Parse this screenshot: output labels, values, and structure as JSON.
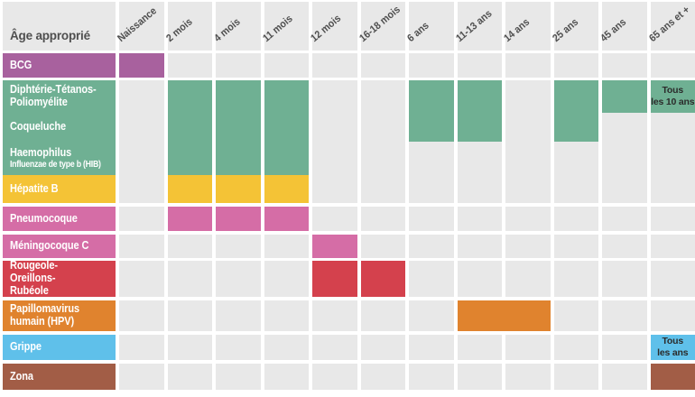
{
  "header": {
    "corner_label": "Âge approprié",
    "columns": [
      "Naissance",
      "2 mois",
      "4 mois",
      "11 mois",
      "12 mois",
      "16-18 mois",
      "6 ans",
      "11-13 ans",
      "14 ans",
      "25 ans",
      "45 ans",
      "65 ans et +"
    ]
  },
  "labels": {
    "bcg": "BCG",
    "dtp": "Diphtérie-Tétanos-\nPoliomyélite",
    "coqueluche": "Coqueluche",
    "hib_line1": "Haemophilus",
    "hib_line2": "Influenzae de type b (HIB)",
    "hepatite_b": "Hépatite B",
    "pneumocoque": "Pneumocoque",
    "meningocoque": "Méningocoque C",
    "rougeole": "Rougeole-Oreillons-\nRubéole",
    "hpv": "Papillomavirus\nhumain (HPV)",
    "grippe": "Grippe",
    "zona": "Zona"
  },
  "notes": {
    "every_10_years": "Tous\nles 10 ans",
    "every_year": "Tous\nles ans"
  },
  "palette": {
    "bcg": "#a8619e",
    "dtp": "#6fb093",
    "hepatite_b": "#f4c336",
    "pneumocoque": "#d56da6",
    "meningocoque": "#d56da6",
    "rougeole": "#d4414d",
    "hpv": "#e0832e",
    "grippe": "#5fc0ea",
    "zona": "#a25d46",
    "empty": "#e8e8e8",
    "header_text": "#4f4f4f",
    "label_text": "#ffffff",
    "note_text": "#2b2b2b",
    "background": "#ffffff"
  },
  "cells": [
    {
      "row": "bcg",
      "cols": [
        "Naissance"
      ],
      "color": "bcg"
    },
    {
      "row": "dtp",
      "row_end": "hib",
      "cols": [
        "2 mois",
        "4 mois",
        "11 mois"
      ],
      "color": "dtp"
    },
    {
      "row": "dtp",
      "row_end": "coqueluche",
      "cols": [
        "6 ans",
        "11-13 ans",
        "25 ans"
      ],
      "color": "dtp"
    },
    {
      "row": "dtp",
      "cols": [
        "45 ans"
      ],
      "color": "dtp"
    },
    {
      "row": "dtp",
      "cols": [
        "65 ans et +"
      ],
      "color": "dtp",
      "note": "Tous\nles 10 ans"
    },
    {
      "row": "hepatite_b",
      "cols": [
        "2 mois",
        "4 mois",
        "11 mois"
      ],
      "color": "hepatite_b"
    },
    {
      "row": "pneumocoque",
      "cols": [
        "2 mois",
        "4 mois",
        "11 mois"
      ],
      "color": "pneumocoque"
    },
    {
      "row": "meningocoque",
      "cols": [
        "12 mois"
      ],
      "color": "meningocoque"
    },
    {
      "row": "rougeole",
      "cols": [
        "12 mois",
        "16-18 mois"
      ],
      "color": "rougeole"
    },
    {
      "row": "hpv",
      "col_start": "11-13 ans",
      "col_end": "14 ans",
      "color": "hpv"
    },
    {
      "row": "grippe",
      "cols": [
        "65 ans et +"
      ],
      "color": "grippe",
      "note": "Tous\nles ans"
    },
    {
      "row": "zona",
      "cols": [
        "65 ans et +"
      ],
      "color": "zona"
    }
  ]
}
